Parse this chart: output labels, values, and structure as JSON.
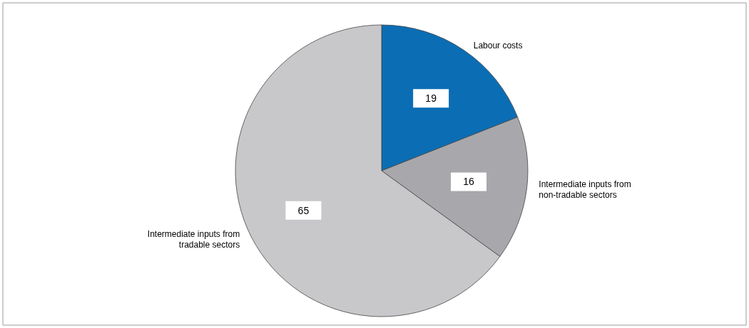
{
  "chart_data": {
    "type": "pie",
    "categories": [
      "Labour costs",
      "Intermediate inputs from\nnon-tradable sectors",
      "Intermediate inputs from\ntradable sectors"
    ],
    "values": [
      19,
      16,
      65
    ],
    "colors": [
      "#0b6db4",
      "#a8a8ac",
      "#c8c8ca"
    ],
    "data_labels": true,
    "legend": false
  }
}
